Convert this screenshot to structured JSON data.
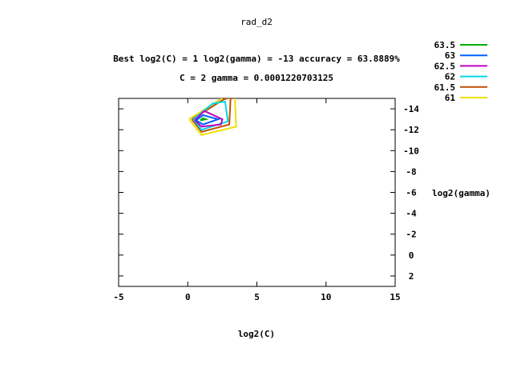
{
  "chart_data": {
    "type": "line",
    "title": "rad_d2",
    "subtitle_1": "Best log2(C) = 1  log2(gamma) = -13  accuracy = 63.8889%",
    "subtitle_2": "C = 2  gamma = 0.0001220703125",
    "xlabel": "log2(C)",
    "ylabel": "log2(gamma)",
    "xlim": [
      -5,
      15
    ],
    "ylim": [
      3,
      -15
    ],
    "x_ticks": [
      "-5",
      "0",
      "5",
      "10",
      "15"
    ],
    "y_ticks": [
      "-14",
      "-12",
      "-10",
      "-8",
      "-6",
      "-4",
      "-2",
      "0",
      "2"
    ],
    "legend_position": "top-right",
    "grid": false,
    "series": [
      {
        "name": "63.5",
        "color": "#00b000",
        "points": [
          [
            0.9,
            -12.9
          ],
          [
            1.3,
            -13.0
          ],
          [
            1.1,
            -13.1
          ],
          [
            0.9,
            -12.9
          ]
        ]
      },
      {
        "name": "63",
        "color": "#0060ff",
        "points": [
          [
            0.6,
            -12.9
          ],
          [
            1.1,
            -13.4
          ],
          [
            2.2,
            -13.0
          ],
          [
            1.1,
            -12.5
          ],
          [
            0.6,
            -12.9
          ]
        ]
      },
      {
        "name": "62.5",
        "color": "#c000c0",
        "points": [
          [
            0.5,
            -12.9
          ],
          [
            1.2,
            -13.8
          ],
          [
            2.5,
            -13.0
          ],
          [
            2.4,
            -12.5
          ],
          [
            1.0,
            -12.3
          ],
          [
            0.5,
            -12.9
          ]
        ]
      },
      {
        "name": "62",
        "color": "#00d8e8",
        "points": [
          [
            0.4,
            -13.0
          ],
          [
            1.8,
            -14.5
          ],
          [
            2.7,
            -14.7
          ],
          [
            2.9,
            -12.8
          ],
          [
            1.0,
            -12.0
          ],
          [
            0.4,
            -13.0
          ]
        ]
      },
      {
        "name": "61.5",
        "color": "#c05000",
        "points": [
          [
            0.3,
            -13.0
          ],
          [
            2.6,
            -14.9
          ],
          [
            3.1,
            -15.1
          ],
          [
            3.0,
            -12.5
          ],
          [
            1.0,
            -11.8
          ],
          [
            0.3,
            -13.0
          ]
        ]
      },
      {
        "name": "61",
        "color": "#f0e000",
        "points": [
          [
            0.1,
            -13.0
          ],
          [
            2.7,
            -15.2
          ],
          [
            3.4,
            -15.3
          ],
          [
            3.5,
            -12.3
          ],
          [
            1.0,
            -11.5
          ],
          [
            0.1,
            -13.0
          ]
        ]
      }
    ]
  }
}
